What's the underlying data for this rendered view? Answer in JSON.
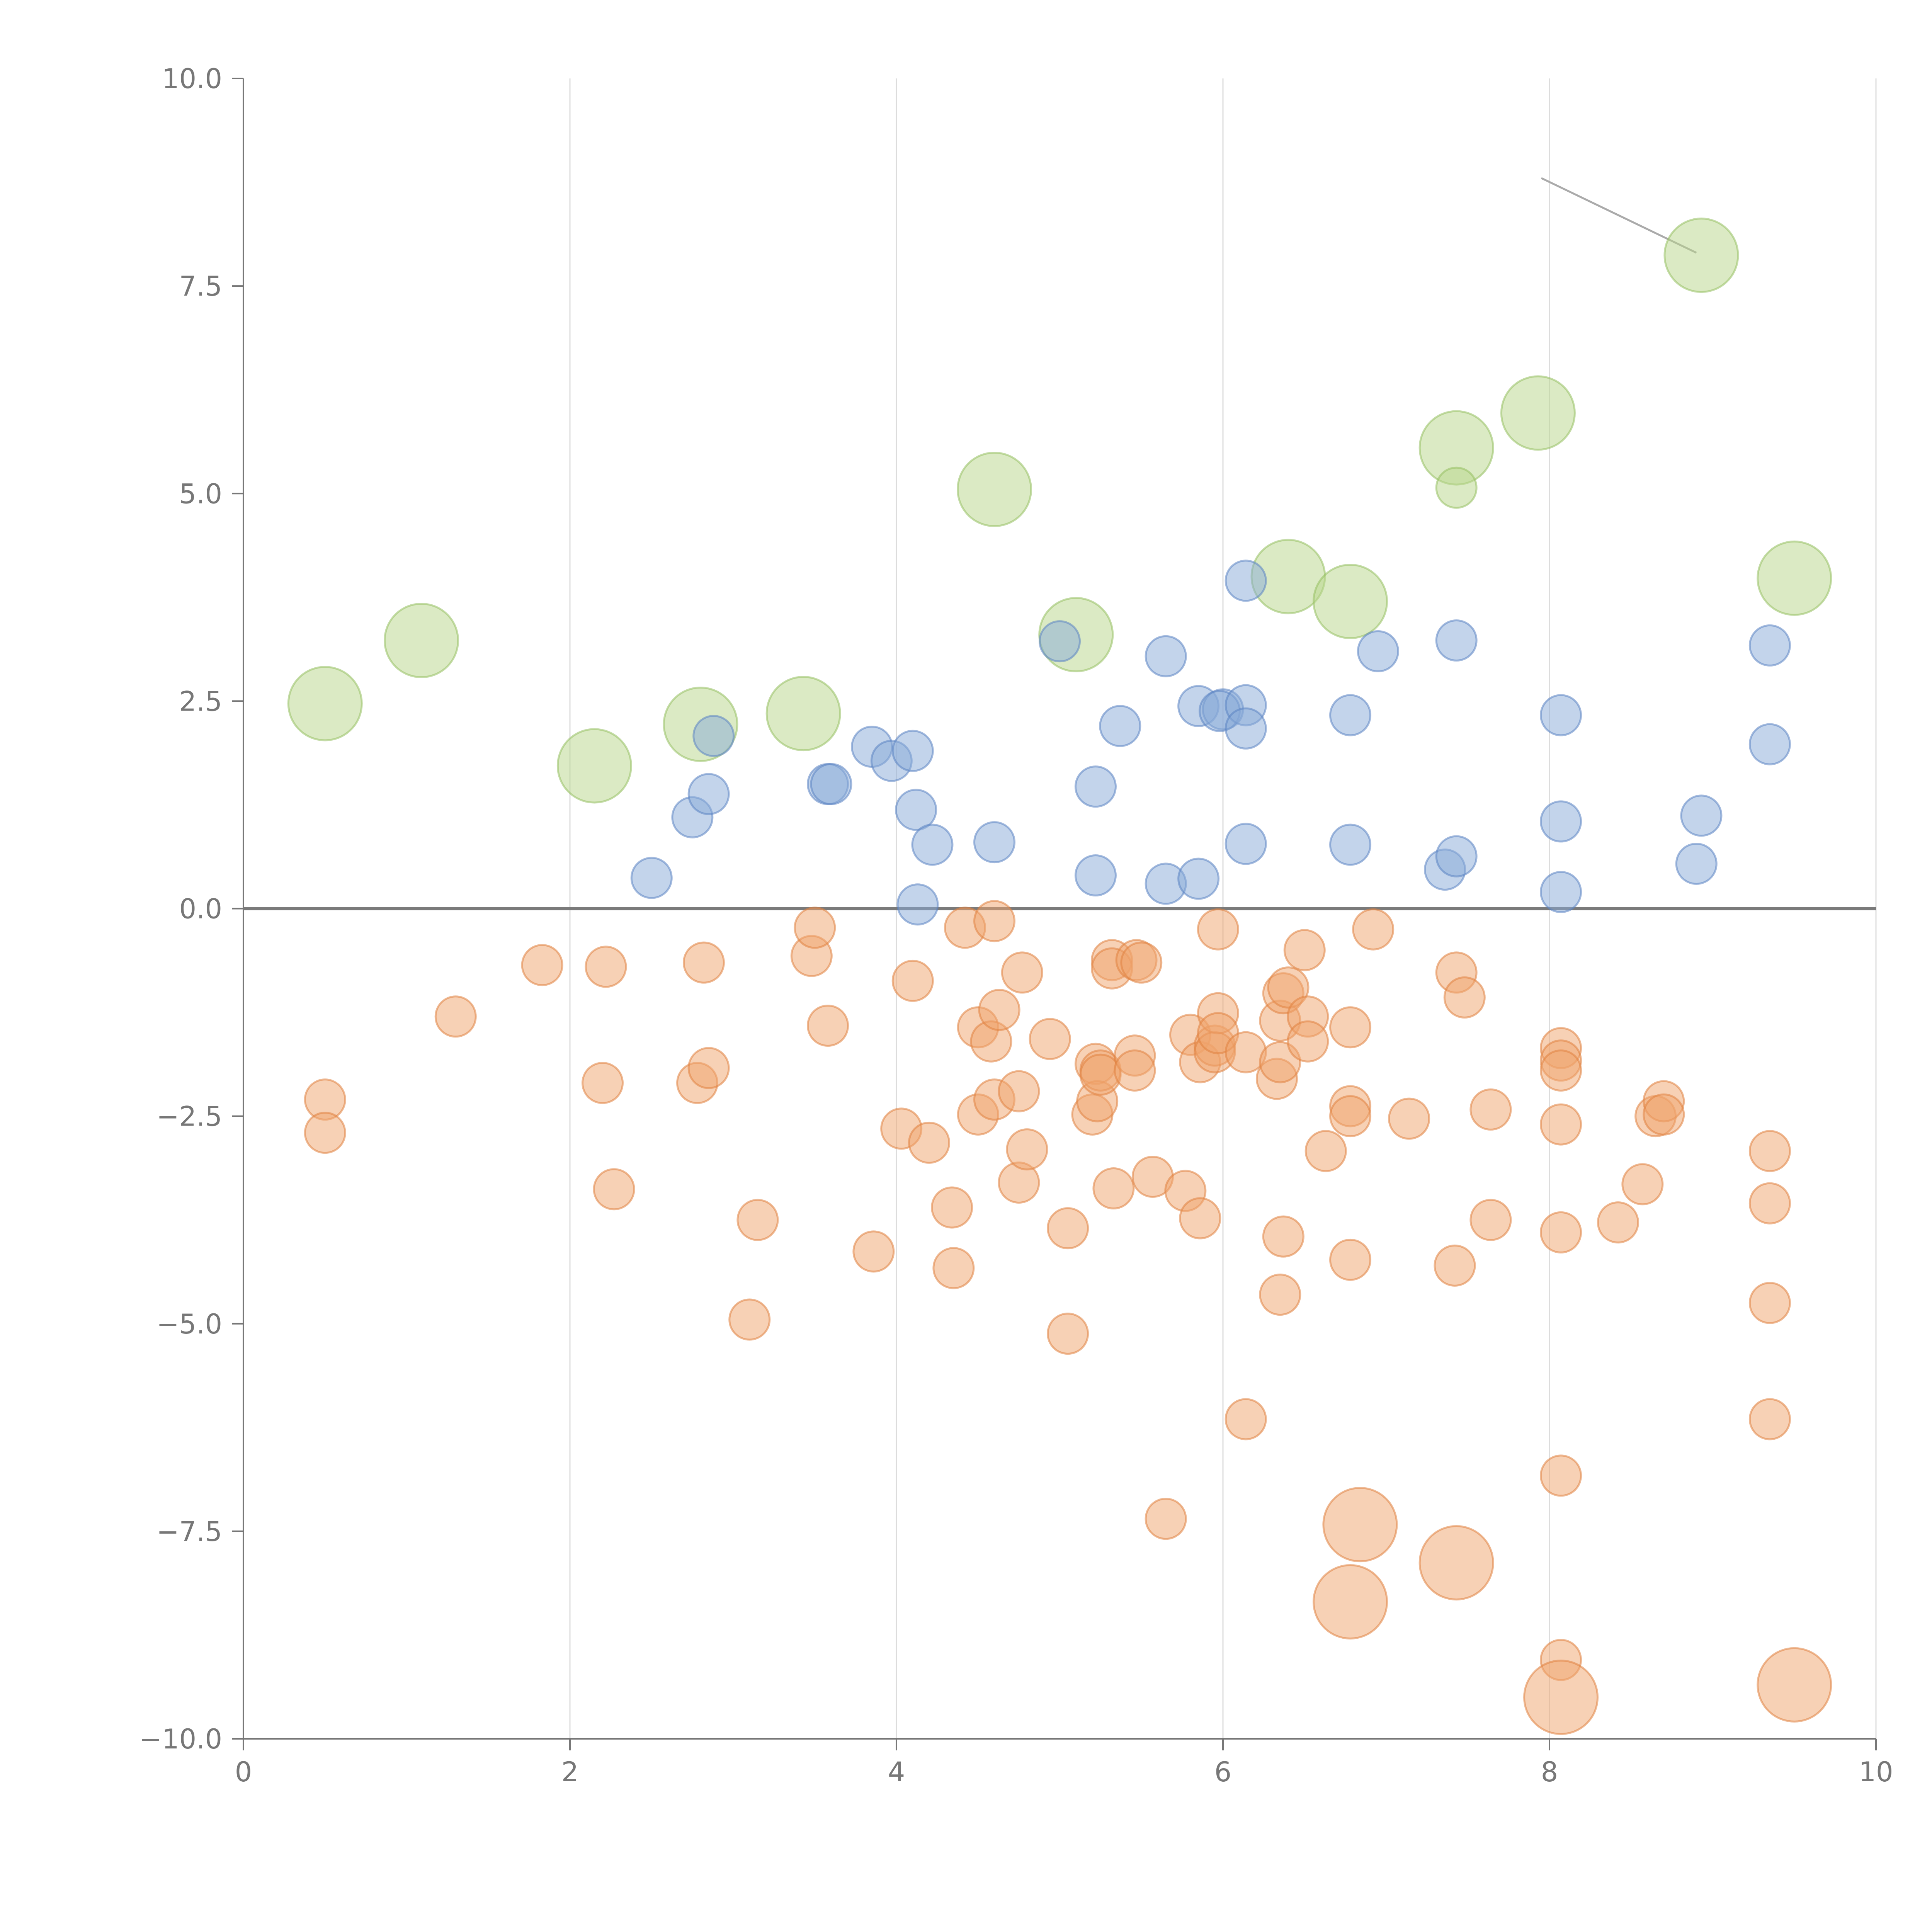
{
  "chart_data": {
    "type": "scatter",
    "title": "",
    "xlabel": "",
    "ylabel": "",
    "xlim": [
      0,
      10
    ],
    "ylim": [
      -10,
      10
    ],
    "x_ticks": [
      0,
      2,
      4,
      6,
      8,
      10
    ],
    "y_ticks": [
      -10.0,
      -7.5,
      -5.0,
      -2.5,
      0.0,
      2.5,
      5.0,
      7.5,
      10.0
    ],
    "x_tick_labels": [
      "0",
      "2",
      "4",
      "6",
      "8",
      "10"
    ],
    "y_tick_labels": [
      "−10.0",
      "−7.5",
      "−5.0",
      "−2.5",
      "0.0",
      "2.5",
      "5.0",
      "7.5",
      "10.0"
    ],
    "grid": {
      "x": true,
      "y": false
    },
    "reference_line_y": 0,
    "colors": {
      "negative": "#f0a46c",
      "negative_stroke": "#e0823f",
      "positive": "#88a9d8",
      "positive_stroke": "#5b83c2",
      "highlight": "#b8d68a",
      "highlight_stroke": "#96bf62",
      "leader": "#aaaaaa"
    },
    "leader_line": {
      "x1": 7.95,
      "y1": 8.8,
      "x2": 8.9,
      "y2": 7.9
    },
    "series": [
      {
        "name": "positive",
        "size": "small",
        "points": [
          [
            2.5,
            0.37
          ],
          [
            2.75,
            1.1
          ],
          [
            2.85,
            1.38
          ],
          [
            2.88,
            2.08
          ],
          [
            3.58,
            1.5
          ],
          [
            3.6,
            1.5
          ],
          [
            3.85,
            1.95
          ],
          [
            3.97,
            1.78
          ],
          [
            4.1,
            1.9
          ],
          [
            4.12,
            1.19
          ],
          [
            4.22,
            0.77
          ],
          [
            4.13,
            0.05
          ],
          [
            4.6,
            0.8
          ],
          [
            5.0,
            3.22
          ],
          [
            5.22,
            1.47
          ],
          [
            5.22,
            0.4
          ],
          [
            5.37,
            2.2
          ],
          [
            5.65,
            3.04
          ],
          [
            5.65,
            0.3
          ],
          [
            5.85,
            2.44
          ],
          [
            5.85,
            0.36
          ],
          [
            6.0,
            2.4
          ],
          [
            5.98,
            2.38
          ],
          [
            6.14,
            2.45
          ],
          [
            6.14,
            2.17
          ],
          [
            6.14,
            3.95
          ],
          [
            6.14,
            0.78
          ],
          [
            6.78,
            2.33
          ],
          [
            6.78,
            0.77
          ],
          [
            6.95,
            3.1
          ],
          [
            7.36,
            0.47
          ],
          [
            7.43,
            0.63
          ],
          [
            7.43,
            3.23
          ],
          [
            8.07,
            2.33
          ],
          [
            8.07,
            1.05
          ],
          [
            8.07,
            0.2
          ],
          [
            8.9,
            0.54
          ],
          [
            8.93,
            1.12
          ],
          [
            9.35,
            3.17
          ],
          [
            9.35,
            1.98
          ]
        ]
      },
      {
        "name": "negative",
        "size": "small",
        "points": [
          [
            0.5,
            -2.3
          ],
          [
            0.5,
            -2.7
          ],
          [
            1.3,
            -1.3
          ],
          [
            1.83,
            -0.68
          ],
          [
            2.2,
            -2.1
          ],
          [
            2.22,
            -0.7
          ],
          [
            2.27,
            -3.38
          ],
          [
            2.78,
            -2.1
          ],
          [
            2.82,
            -0.65
          ],
          [
            2.85,
            -1.92
          ],
          [
            3.1,
            -4.95
          ],
          [
            3.15,
            -3.75
          ],
          [
            3.48,
            -0.57
          ],
          [
            3.5,
            -0.23
          ],
          [
            3.58,
            -1.41
          ],
          [
            3.86,
            -4.13
          ],
          [
            4.03,
            -2.65
          ],
          [
            4.1,
            -0.87
          ],
          [
            4.2,
            -2.82
          ],
          [
            4.34,
            -3.6
          ],
          [
            4.35,
            -4.33
          ],
          [
            4.42,
            -0.23
          ],
          [
            4.5,
            -1.43
          ],
          [
            4.5,
            -2.48
          ],
          [
            4.58,
            -1.6
          ],
          [
            4.6,
            -0.15
          ],
          [
            4.6,
            -2.3
          ],
          [
            4.63,
            -1.22
          ],
          [
            4.75,
            -2.2
          ],
          [
            4.75,
            -3.3
          ],
          [
            4.77,
            -0.77
          ],
          [
            4.8,
            -2.9
          ],
          [
            4.94,
            -1.57
          ],
          [
            5.05,
            -3.85
          ],
          [
            5.05,
            -5.12
          ],
          [
            5.2,
            -2.48
          ],
          [
            5.22,
            -1.87
          ],
          [
            5.23,
            -2.32
          ],
          [
            5.25,
            -1.95
          ],
          [
            5.25,
            -2.0
          ],
          [
            5.32,
            -0.62
          ],
          [
            5.32,
            -0.72
          ],
          [
            5.33,
            -3.37
          ],
          [
            5.46,
            -1.77
          ],
          [
            5.46,
            -1.95
          ],
          [
            5.47,
            -0.62
          ],
          [
            5.5,
            -0.65
          ],
          [
            5.57,
            -3.23
          ],
          [
            5.65,
            -7.35
          ],
          [
            5.77,
            -3.4
          ],
          [
            5.8,
            -1.52
          ],
          [
            5.86,
            -1.85
          ],
          [
            5.86,
            -3.73
          ],
          [
            5.95,
            -1.65
          ],
          [
            5.95,
            -1.73
          ],
          [
            5.97,
            -0.25
          ],
          [
            5.97,
            -1.26
          ],
          [
            5.97,
            -1.5
          ],
          [
            6.14,
            -1.73
          ],
          [
            6.14,
            -6.15
          ],
          [
            6.33,
            -2.05
          ],
          [
            6.35,
            -1.35
          ],
          [
            6.35,
            -1.85
          ],
          [
            6.35,
            -4.65
          ],
          [
            6.37,
            -1.02
          ],
          [
            6.37,
            -3.95
          ],
          [
            6.4,
            -0.95
          ],
          [
            6.5,
            -0.5
          ],
          [
            6.52,
            -1.3
          ],
          [
            6.52,
            -1.6
          ],
          [
            6.63,
            -2.92
          ],
          [
            6.78,
            -1.43
          ],
          [
            6.78,
            -2.38
          ],
          [
            6.78,
            -2.5
          ],
          [
            6.78,
            -4.23
          ],
          [
            6.92,
            -0.25
          ],
          [
            7.14,
            -2.53
          ],
          [
            7.42,
            -4.3
          ],
          [
            7.43,
            -0.77
          ],
          [
            7.48,
            -1.07
          ],
          [
            7.64,
            -2.42
          ],
          [
            7.64,
            -3.75
          ],
          [
            8.07,
            -1.68
          ],
          [
            8.07,
            -1.83
          ],
          [
            8.07,
            -1.95
          ],
          [
            8.07,
            -2.6
          ],
          [
            8.07,
            -3.9
          ],
          [
            8.07,
            -6.83
          ],
          [
            8.07,
            -9.05
          ],
          [
            8.42,
            -3.78
          ],
          [
            8.57,
            -3.32
          ],
          [
            8.65,
            -2.5
          ],
          [
            8.7,
            -2.32
          ],
          [
            8.7,
            -2.48
          ],
          [
            9.35,
            -2.92
          ],
          [
            9.35,
            -3.55
          ],
          [
            9.35,
            -4.75
          ],
          [
            9.35,
            -6.15
          ]
        ]
      },
      {
        "name": "negative-large",
        "size": "large",
        "points": [
          [
            6.84,
            -7.42
          ],
          [
            6.78,
            -8.35
          ],
          [
            7.43,
            -7.88
          ],
          [
            8.07,
            -9.5
          ],
          [
            9.5,
            -9.35
          ]
        ]
      },
      {
        "name": "highlight",
        "size": "large",
        "points": [
          [
            0.5,
            2.47
          ],
          [
            1.09,
            3.23
          ],
          [
            2.15,
            1.72
          ],
          [
            2.8,
            2.22
          ],
          [
            3.43,
            2.35
          ],
          [
            4.6,
            5.05
          ],
          [
            5.1,
            3.3
          ],
          [
            6.4,
            4.0
          ],
          [
            6.78,
            3.7
          ],
          [
            7.43,
            5.55
          ],
          [
            7.93,
            5.97
          ],
          [
            8.93,
            7.87
          ],
          [
            9.5,
            3.98
          ]
        ]
      },
      {
        "name": "highlight-small",
        "size": "small",
        "points": [
          [
            7.43,
            5.07
          ]
        ]
      }
    ]
  }
}
